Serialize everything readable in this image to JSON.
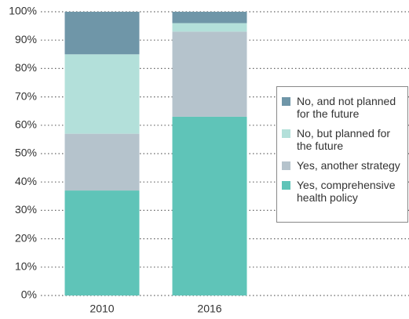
{
  "chart_data": {
    "type": "stacked_bar",
    "categories": [
      "2010",
      "2016"
    ],
    "series": [
      {
        "name": "Yes, comprehensive health policy",
        "color": "#5fc4b8",
        "values": [
          37,
          63
        ]
      },
      {
        "name": "Yes, another strategy",
        "color": "#b5c3cc",
        "values": [
          20,
          30
        ]
      },
      {
        "name": "No, but planned for the future",
        "color": "#b3e0da",
        "values": [
          28,
          3
        ]
      },
      {
        "name": "No, and not planned for the future",
        "color": "#6f96a8",
        "values": [
          15,
          4
        ]
      }
    ],
    "ylim": [
      0,
      100
    ],
    "yticks": [
      {
        "value": 0,
        "label": "0%"
      },
      {
        "value": 10,
        "label": "10%"
      },
      {
        "value": 20,
        "label": "20%"
      },
      {
        "value": 30,
        "label": "30%"
      },
      {
        "value": 40,
        "label": "40%"
      },
      {
        "value": 50,
        "label": "50%"
      },
      {
        "value": 60,
        "label": "60%"
      },
      {
        "value": 70,
        "label": "70%"
      },
      {
        "value": 80,
        "label": "80%"
      },
      {
        "value": 90,
        "label": "90%"
      },
      {
        "value": 100,
        "label": "100%"
      }
    ],
    "grid": true,
    "legend": "right"
  }
}
